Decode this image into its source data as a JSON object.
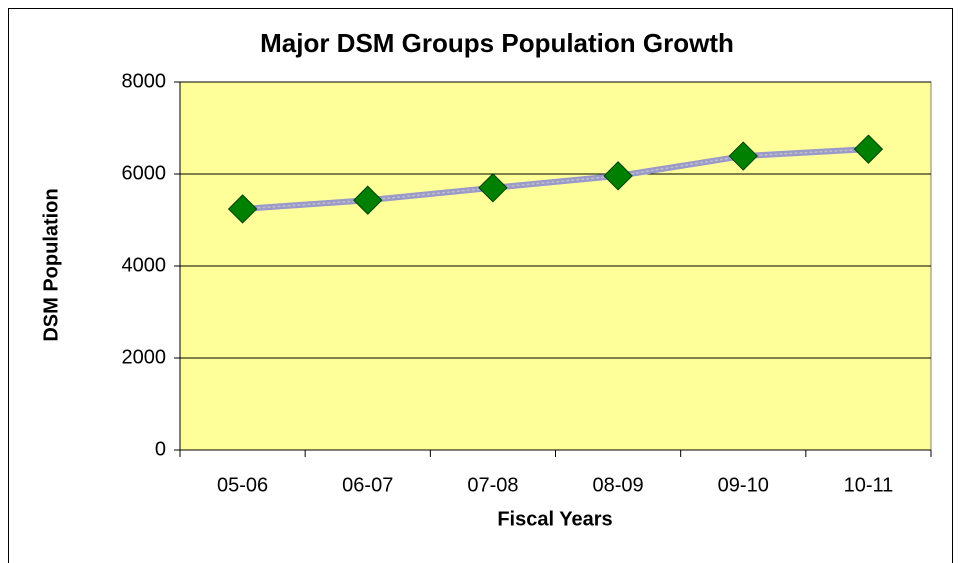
{
  "chart_data": {
    "type": "line",
    "title": "Major DSM Groups Population Growth",
    "x_label": "Fiscal Years",
    "y_label": "DSM Population",
    "categories": [
      "05-06",
      "06-07",
      "07-08",
      "08-09",
      "09-10",
      "10-11"
    ],
    "series": [
      {
        "name": "DSM Population",
        "color": "#9999cc",
        "marker_color": "#008000",
        "values": [
          5240,
          5430,
          5700,
          5960,
          6390,
          6540
        ]
      }
    ],
    "ylim": [
      0,
      8000
    ],
    "yticks": [
      0,
      2000,
      4000,
      6000,
      8000
    ],
    "grid": true,
    "plot_background": "#ffff99"
  }
}
